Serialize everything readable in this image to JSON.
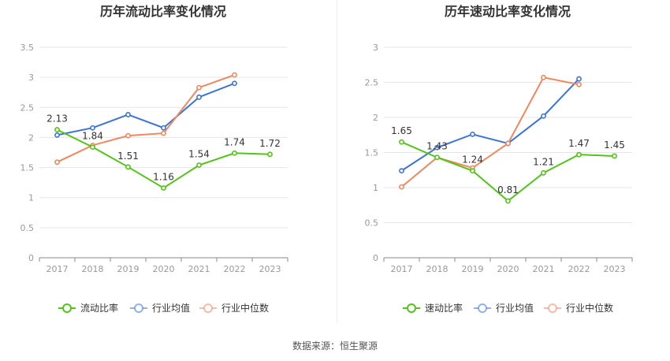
{
  "chart_data": [
    {
      "type": "line",
      "title": "历年流动比率变化情况",
      "categories": [
        "2017",
        "2018",
        "2019",
        "2020",
        "2021",
        "2022",
        "2023"
      ],
      "ylim": [
        0,
        3.5
      ],
      "yticks": [
        0,
        0.5,
        1,
        1.5,
        2,
        2.5,
        3,
        3.5
      ],
      "ytick_labels": [
        "0",
        "0.5",
        "1",
        "1.5",
        "2",
        "2.5",
        "3",
        "3.5"
      ],
      "legend_position": "bottom",
      "series": [
        {
          "name": "流动比率",
          "color": "#52c41a",
          "values": [
            2.13,
            1.84,
            1.51,
            1.16,
            1.54,
            1.74,
            1.72
          ],
          "labels": [
            "2.13",
            "1.84",
            "1.51",
            "1.16",
            "1.54",
            "1.74",
            "1.72"
          ]
        },
        {
          "name": "行业均值",
          "color": "#3b73d9",
          "values": [
            2.04,
            2.16,
            2.38,
            2.16,
            2.67,
            2.9,
            null
          ]
        },
        {
          "name": "行业中位数",
          "color": "#f0875f",
          "values": [
            1.59,
            1.87,
            2.03,
            2.07,
            2.83,
            3.04,
            null
          ]
        }
      ]
    },
    {
      "type": "line",
      "title": "历年速动比率变化情况",
      "categories": [
        "2017",
        "2018",
        "2019",
        "2020",
        "2021",
        "2022",
        "2023"
      ],
      "ylim": [
        0,
        3
      ],
      "yticks": [
        0,
        0.5,
        1,
        1.5,
        2,
        2.5,
        3
      ],
      "ytick_labels": [
        "0",
        "0.5",
        "1",
        "1.5",
        "2",
        "2.5",
        "3"
      ],
      "legend_position": "bottom",
      "series": [
        {
          "name": "速动比率",
          "color": "#52c41a",
          "values": [
            1.65,
            1.43,
            1.24,
            0.81,
            1.21,
            1.47,
            1.45
          ],
          "labels": [
            "1.65",
            "1.43",
            "1.24",
            "0.81",
            "1.21",
            "1.47",
            "1.45"
          ]
        },
        {
          "name": "行业均值",
          "color": "#3b73d9",
          "values": [
            1.24,
            1.57,
            1.76,
            1.63,
            2.02,
            2.55,
            null
          ]
        },
        {
          "name": "行业中位数",
          "color": "#f0875f",
          "values": [
            1.01,
            1.43,
            1.28,
            1.63,
            2.57,
            2.47,
            null
          ]
        }
      ]
    }
  ],
  "footer": {
    "source": "数据来源：恒生聚源"
  }
}
